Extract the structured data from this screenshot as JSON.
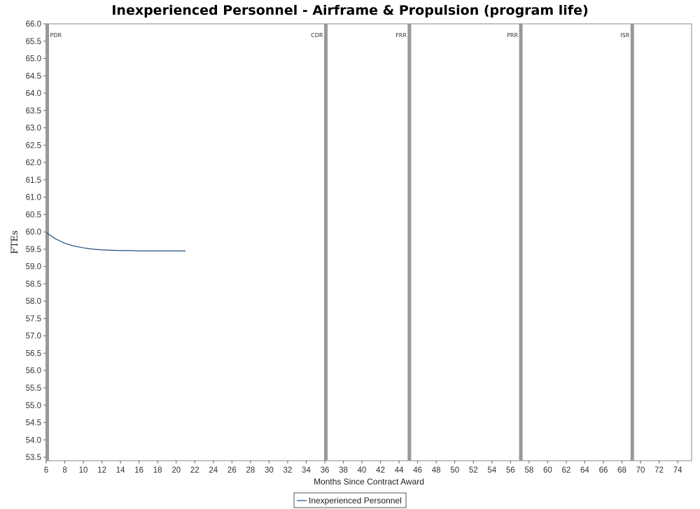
{
  "chart_data": {
    "type": "line",
    "title": "Inexperienced Personnel - Airframe & Propulsion (program life)",
    "xlabel": "Months Since Contract Award",
    "ylabel": "FTEs",
    "xlim": [
      6,
      75.5
    ],
    "ylim": [
      53.4,
      66.0
    ],
    "x_ticks": [
      6,
      8,
      10,
      12,
      14,
      16,
      18,
      20,
      22,
      24,
      26,
      28,
      30,
      32,
      34,
      36,
      38,
      40,
      42,
      44,
      46,
      48,
      50,
      52,
      54,
      56,
      58,
      60,
      62,
      64,
      66,
      68,
      70,
      72,
      74
    ],
    "y_ticks": [
      53.5,
      54.0,
      54.5,
      55.0,
      55.5,
      56.0,
      56.5,
      57.0,
      57.5,
      58.0,
      58.5,
      59.0,
      59.5,
      60.0,
      60.5,
      61.0,
      61.5,
      62.0,
      62.5,
      63.0,
      63.5,
      64.0,
      64.5,
      65.0,
      65.5,
      66.0
    ],
    "series": [
      {
        "name": "Inexperienced Personnel",
        "color": "#1f4e79",
        "x": [
          6,
          7,
          8,
          9,
          10,
          11,
          12,
          13,
          14,
          15,
          16,
          17,
          18,
          19,
          20,
          21
        ],
        "y": [
          59.98,
          59.8,
          59.67,
          59.59,
          59.54,
          59.5,
          59.48,
          59.47,
          59.46,
          59.46,
          59.45,
          59.45,
          59.45,
          59.45,
          59.45,
          59.45
        ]
      }
    ],
    "milestones": [
      {
        "label": "PDR",
        "x": 6
      },
      {
        "label": "CDR",
        "x": 36
      },
      {
        "label": "FRR",
        "x": 45
      },
      {
        "label": "PRR",
        "x": 57
      },
      {
        "label": "ISR",
        "x": 69
      }
    ],
    "milestone_color": "#999999",
    "grid": false,
    "legend_position": "bottom-center"
  }
}
